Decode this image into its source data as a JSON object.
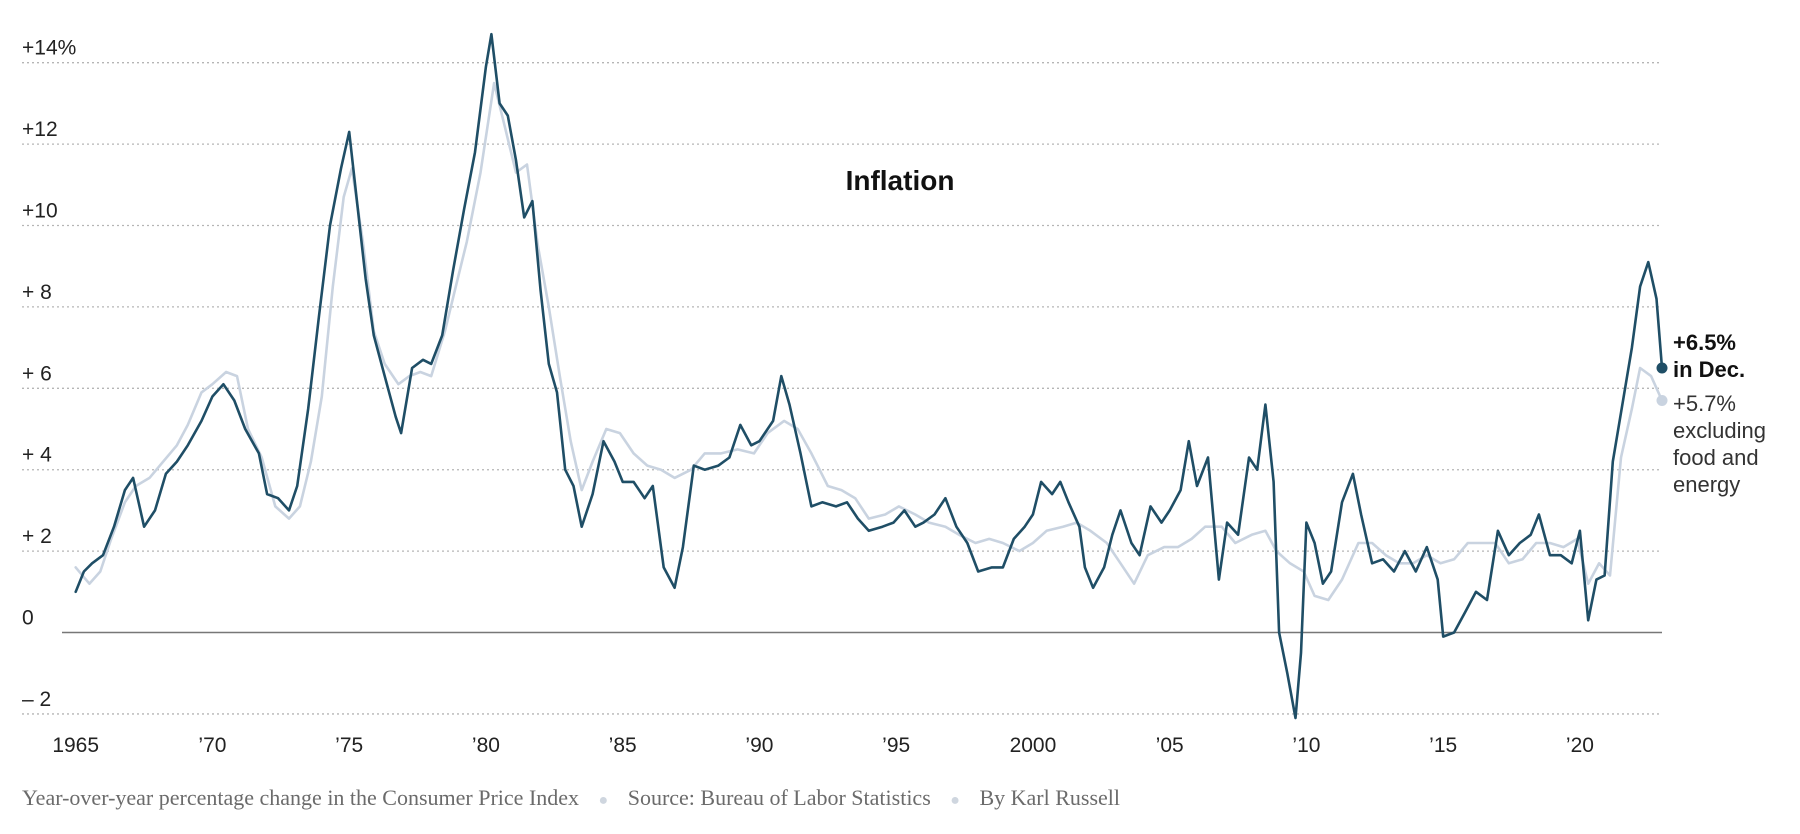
{
  "chart_data": {
    "type": "line",
    "title": "Inflation",
    "ylim": [
      -2.1,
      15.0
    ],
    "xlim": [
      1964.5,
      2023.0
    ],
    "grid": true,
    "y_ticks": [
      {
        "value": 14,
        "label": "+14%"
      },
      {
        "value": 12,
        "label": "+12"
      },
      {
        "value": 10,
        "label": "+10"
      },
      {
        "value": 8,
        "label": "+ 8"
      },
      {
        "value": 6,
        "label": "+ 6"
      },
      {
        "value": 4,
        "label": "+ 4"
      },
      {
        "value": 2,
        "label": "+ 2"
      },
      {
        "value": 0,
        "label": "0"
      },
      {
        "value": -2,
        "label": "– 2"
      }
    ],
    "x_ticks": [
      {
        "value": 1965,
        "label": "1965"
      },
      {
        "value": 1970,
        "label": "’70"
      },
      {
        "value": 1975,
        "label": "’75"
      },
      {
        "value": 1980,
        "label": "’80"
      },
      {
        "value": 1985,
        "label": "’85"
      },
      {
        "value": 1990,
        "label": "’90"
      },
      {
        "value": 1995,
        "label": "’95"
      },
      {
        "value": 2000,
        "label": "2000"
      },
      {
        "value": 2005,
        "label": "’05"
      },
      {
        "value": 2010,
        "label": "’10"
      },
      {
        "value": 2015,
        "label": "’15"
      },
      {
        "value": 2020,
        "label": "’20"
      }
    ],
    "series": [
      {
        "color": "#1f4e66",
        "points": [
          [
            1965.0,
            1.0
          ],
          [
            1965.3,
            1.5
          ],
          [
            1965.6,
            1.7
          ],
          [
            1966.0,
            1.9
          ],
          [
            1966.4,
            2.6
          ],
          [
            1966.8,
            3.5
          ],
          [
            1967.1,
            3.8
          ],
          [
            1967.5,
            2.6
          ],
          [
            1967.9,
            3.0
          ],
          [
            1968.3,
            3.9
          ],
          [
            1968.7,
            4.2
          ],
          [
            1969.1,
            4.6
          ],
          [
            1969.6,
            5.2
          ],
          [
            1970.0,
            5.8
          ],
          [
            1970.4,
            6.1
          ],
          [
            1970.8,
            5.7
          ],
          [
            1971.2,
            5.0
          ],
          [
            1971.7,
            4.4
          ],
          [
            1972.0,
            3.4
          ],
          [
            1972.4,
            3.3
          ],
          [
            1972.8,
            3.0
          ],
          [
            1973.1,
            3.6
          ],
          [
            1973.5,
            5.5
          ],
          [
            1973.9,
            7.8
          ],
          [
            1974.3,
            10.0
          ],
          [
            1974.7,
            11.4
          ],
          [
            1975.0,
            12.3
          ],
          [
            1975.3,
            10.5
          ],
          [
            1975.6,
            8.7
          ],
          [
            1975.9,
            7.3
          ],
          [
            1976.3,
            6.3
          ],
          [
            1976.7,
            5.3
          ],
          [
            1976.9,
            4.9
          ],
          [
            1977.3,
            6.5
          ],
          [
            1977.7,
            6.7
          ],
          [
            1978.0,
            6.6
          ],
          [
            1978.4,
            7.3
          ],
          [
            1978.8,
            8.9
          ],
          [
            1979.2,
            10.4
          ],
          [
            1979.6,
            11.8
          ],
          [
            1980.0,
            13.9
          ],
          [
            1980.2,
            14.7
          ],
          [
            1980.5,
            13.0
          ],
          [
            1980.8,
            12.7
          ],
          [
            1981.1,
            11.6
          ],
          [
            1981.4,
            10.2
          ],
          [
            1981.7,
            10.6
          ],
          [
            1982.0,
            8.4
          ],
          [
            1982.3,
            6.6
          ],
          [
            1982.6,
            5.9
          ],
          [
            1982.9,
            4.0
          ],
          [
            1983.2,
            3.6
          ],
          [
            1983.5,
            2.6
          ],
          [
            1983.9,
            3.4
          ],
          [
            1984.3,
            4.7
          ],
          [
            1984.7,
            4.2
          ],
          [
            1985.0,
            3.7
          ],
          [
            1985.4,
            3.7
          ],
          [
            1985.8,
            3.3
          ],
          [
            1986.1,
            3.6
          ],
          [
            1986.5,
            1.6
          ],
          [
            1986.9,
            1.1
          ],
          [
            1987.2,
            2.1
          ],
          [
            1987.6,
            4.1
          ],
          [
            1988.0,
            4.0
          ],
          [
            1988.5,
            4.1
          ],
          [
            1988.9,
            4.3
          ],
          [
            1989.3,
            5.1
          ],
          [
            1989.7,
            4.6
          ],
          [
            1990.0,
            4.7
          ],
          [
            1990.5,
            5.2
          ],
          [
            1990.8,
            6.3
          ],
          [
            1991.1,
            5.6
          ],
          [
            1991.5,
            4.4
          ],
          [
            1991.9,
            3.1
          ],
          [
            1992.3,
            3.2
          ],
          [
            1992.8,
            3.1
          ],
          [
            1993.2,
            3.2
          ],
          [
            1993.6,
            2.8
          ],
          [
            1994.0,
            2.5
          ],
          [
            1994.5,
            2.6
          ],
          [
            1994.9,
            2.7
          ],
          [
            1995.3,
            3.0
          ],
          [
            1995.7,
            2.6
          ],
          [
            1996.0,
            2.7
          ],
          [
            1996.4,
            2.9
          ],
          [
            1996.8,
            3.3
          ],
          [
            1997.2,
            2.6
          ],
          [
            1997.6,
            2.2
          ],
          [
            1998.0,
            1.5
          ],
          [
            1998.5,
            1.6
          ],
          [
            1998.9,
            1.6
          ],
          [
            1999.3,
            2.3
          ],
          [
            1999.7,
            2.6
          ],
          [
            2000.0,
            2.9
          ],
          [
            2000.3,
            3.7
          ],
          [
            2000.7,
            3.4
          ],
          [
            2001.0,
            3.7
          ],
          [
            2001.3,
            3.2
          ],
          [
            2001.7,
            2.6
          ],
          [
            2001.9,
            1.6
          ],
          [
            2002.2,
            1.1
          ],
          [
            2002.6,
            1.6
          ],
          [
            2002.9,
            2.4
          ],
          [
            2003.2,
            3.0
          ],
          [
            2003.6,
            2.2
          ],
          [
            2003.9,
            1.9
          ],
          [
            2004.3,
            3.1
          ],
          [
            2004.7,
            2.7
          ],
          [
            2005.0,
            3.0
          ],
          [
            2005.4,
            3.5
          ],
          [
            2005.7,
            4.7
          ],
          [
            2006.0,
            3.6
          ],
          [
            2006.4,
            4.3
          ],
          [
            2006.8,
            1.3
          ],
          [
            2007.1,
            2.7
          ],
          [
            2007.5,
            2.4
          ],
          [
            2007.9,
            4.3
          ],
          [
            2008.2,
            4.0
          ],
          [
            2008.5,
            5.6
          ],
          [
            2008.8,
            3.7
          ],
          [
            2009.0,
            0.0
          ],
          [
            2009.3,
            -1.0
          ],
          [
            2009.6,
            -2.1
          ],
          [
            2009.8,
            -0.5
          ],
          [
            2010.0,
            2.7
          ],
          [
            2010.3,
            2.2
          ],
          [
            2010.6,
            1.2
          ],
          [
            2010.9,
            1.5
          ],
          [
            2011.3,
            3.2
          ],
          [
            2011.7,
            3.9
          ],
          [
            2012.0,
            2.9
          ],
          [
            2012.4,
            1.7
          ],
          [
            2012.8,
            1.8
          ],
          [
            2013.2,
            1.5
          ],
          [
            2013.6,
            2.0
          ],
          [
            2014.0,
            1.5
          ],
          [
            2014.4,
            2.1
          ],
          [
            2014.8,
            1.3
          ],
          [
            2015.0,
            -0.1
          ],
          [
            2015.4,
            0.0
          ],
          [
            2015.8,
            0.5
          ],
          [
            2016.2,
            1.0
          ],
          [
            2016.6,
            0.8
          ],
          [
            2017.0,
            2.5
          ],
          [
            2017.4,
            1.9
          ],
          [
            2017.8,
            2.2
          ],
          [
            2018.2,
            2.4
          ],
          [
            2018.5,
            2.9
          ],
          [
            2018.9,
            1.9
          ],
          [
            2019.3,
            1.9
          ],
          [
            2019.7,
            1.7
          ],
          [
            2020.0,
            2.5
          ],
          [
            2020.3,
            0.3
          ],
          [
            2020.6,
            1.3
          ],
          [
            2020.9,
            1.4
          ],
          [
            2021.2,
            4.2
          ],
          [
            2021.5,
            5.4
          ],
          [
            2021.9,
            7.0
          ],
          [
            2022.2,
            8.5
          ],
          [
            2022.5,
            9.1
          ],
          [
            2022.8,
            8.2
          ],
          [
            2023.0,
            6.5
          ]
        ]
      },
      {
        "color": "#c9d3e0",
        "points": [
          [
            1965.0,
            1.6
          ],
          [
            1965.5,
            1.2
          ],
          [
            1965.9,
            1.5
          ],
          [
            1966.3,
            2.3
          ],
          [
            1966.8,
            3.2
          ],
          [
            1967.2,
            3.6
          ],
          [
            1967.7,
            3.8
          ],
          [
            1968.2,
            4.2
          ],
          [
            1968.7,
            4.6
          ],
          [
            1969.1,
            5.1
          ],
          [
            1969.6,
            5.9
          ],
          [
            1970.0,
            6.1
          ],
          [
            1970.5,
            6.4
          ],
          [
            1970.9,
            6.3
          ],
          [
            1971.3,
            5.0
          ],
          [
            1971.8,
            4.3
          ],
          [
            1972.3,
            3.1
          ],
          [
            1972.8,
            2.8
          ],
          [
            1973.2,
            3.1
          ],
          [
            1973.6,
            4.2
          ],
          [
            1974.0,
            5.8
          ],
          [
            1974.4,
            8.5
          ],
          [
            1974.8,
            10.7
          ],
          [
            1975.1,
            11.4
          ],
          [
            1975.5,
            9.6
          ],
          [
            1975.9,
            7.4
          ],
          [
            1976.3,
            6.6
          ],
          [
            1976.8,
            6.1
          ],
          [
            1977.2,
            6.3
          ],
          [
            1977.6,
            6.4
          ],
          [
            1978.0,
            6.3
          ],
          [
            1978.5,
            7.4
          ],
          [
            1978.9,
            8.5
          ],
          [
            1979.3,
            9.6
          ],
          [
            1979.8,
            11.3
          ],
          [
            1980.3,
            13.5
          ],
          [
            1980.7,
            12.4
          ],
          [
            1981.1,
            11.3
          ],
          [
            1981.5,
            11.5
          ],
          [
            1981.9,
            9.5
          ],
          [
            1982.3,
            8.0
          ],
          [
            1982.7,
            6.3
          ],
          [
            1983.1,
            4.7
          ],
          [
            1983.5,
            3.5
          ],
          [
            1983.9,
            4.2
          ],
          [
            1984.4,
            5.0
          ],
          [
            1984.9,
            4.9
          ],
          [
            1985.4,
            4.4
          ],
          [
            1985.9,
            4.1
          ],
          [
            1986.4,
            4.0
          ],
          [
            1986.9,
            3.8
          ],
          [
            1987.5,
            4.0
          ],
          [
            1988.0,
            4.4
          ],
          [
            1988.6,
            4.4
          ],
          [
            1989.2,
            4.5
          ],
          [
            1989.8,
            4.4
          ],
          [
            1990.3,
            4.9
          ],
          [
            1990.9,
            5.2
          ],
          [
            1991.4,
            5.0
          ],
          [
            1991.9,
            4.4
          ],
          [
            1992.5,
            3.6
          ],
          [
            1993.0,
            3.5
          ],
          [
            1993.5,
            3.3
          ],
          [
            1994.0,
            2.8
          ],
          [
            1994.6,
            2.9
          ],
          [
            1995.1,
            3.1
          ],
          [
            1995.7,
            2.9
          ],
          [
            1996.2,
            2.7
          ],
          [
            1996.8,
            2.6
          ],
          [
            1997.3,
            2.4
          ],
          [
            1997.9,
            2.2
          ],
          [
            1998.4,
            2.3
          ],
          [
            1998.9,
            2.2
          ],
          [
            1999.5,
            2.0
          ],
          [
            2000.0,
            2.2
          ],
          [
            2000.5,
            2.5
          ],
          [
            2001.1,
            2.6
          ],
          [
            2001.6,
            2.7
          ],
          [
            2002.1,
            2.5
          ],
          [
            2002.7,
            2.2
          ],
          [
            2003.2,
            1.7
          ],
          [
            2003.7,
            1.2
          ],
          [
            2004.2,
            1.9
          ],
          [
            2004.8,
            2.1
          ],
          [
            2005.3,
            2.1
          ],
          [
            2005.8,
            2.3
          ],
          [
            2006.3,
            2.6
          ],
          [
            2006.9,
            2.6
          ],
          [
            2007.4,
            2.2
          ],
          [
            2008.0,
            2.4
          ],
          [
            2008.5,
            2.5
          ],
          [
            2008.9,
            2.0
          ],
          [
            2009.4,
            1.7
          ],
          [
            2009.9,
            1.5
          ],
          [
            2010.3,
            0.9
          ],
          [
            2010.8,
            0.8
          ],
          [
            2011.3,
            1.3
          ],
          [
            2011.9,
            2.2
          ],
          [
            2012.4,
            2.2
          ],
          [
            2012.9,
            1.9
          ],
          [
            2013.4,
            1.7
          ],
          [
            2013.9,
            1.7
          ],
          [
            2014.4,
            1.9
          ],
          [
            2014.9,
            1.7
          ],
          [
            2015.4,
            1.8
          ],
          [
            2015.9,
            2.2
          ],
          [
            2016.4,
            2.2
          ],
          [
            2016.9,
            2.2
          ],
          [
            2017.4,
            1.7
          ],
          [
            2017.9,
            1.8
          ],
          [
            2018.4,
            2.2
          ],
          [
            2018.9,
            2.2
          ],
          [
            2019.4,
            2.1
          ],
          [
            2019.9,
            2.3
          ],
          [
            2020.3,
            1.2
          ],
          [
            2020.7,
            1.7
          ],
          [
            2021.1,
            1.4
          ],
          [
            2021.5,
            4.3
          ],
          [
            2021.9,
            5.5
          ],
          [
            2022.2,
            6.5
          ],
          [
            2022.6,
            6.3
          ],
          [
            2023.0,
            5.7
          ]
        ]
      }
    ],
    "annotations": {
      "dec_value": "+6.5%",
      "dec_label": "in Dec.",
      "core_value": "+5.7%",
      "core_line1": "excluding",
      "core_line2": "food and",
      "core_line3": "energy"
    }
  },
  "footer": {
    "description": "Year-over-year percentage change in the Consumer Price Index",
    "source": "Source: Bureau of Labor Statistics",
    "byline": "By Karl Russell",
    "separator": "●"
  }
}
